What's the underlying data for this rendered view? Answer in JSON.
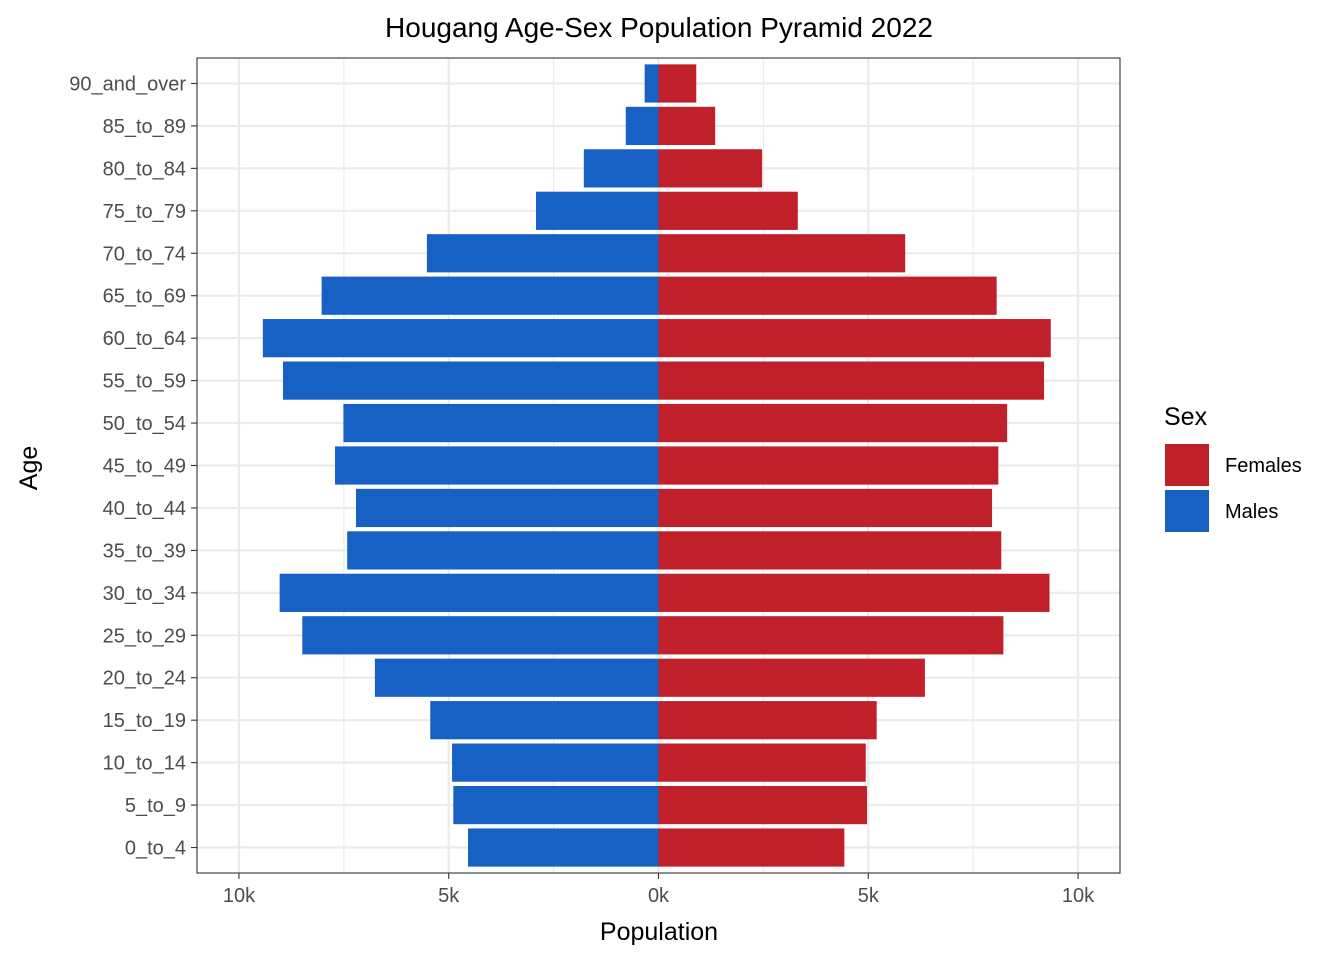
{
  "chart_data": {
    "type": "bar",
    "orientation": "horizontal",
    "title": "Hougang Age-Sex Population Pyramid 2022",
    "xlabel": "Population",
    "ylabel": "Age",
    "xlim": [
      -10000,
      10000
    ],
    "x_ticks": [
      -10000,
      -5000,
      0,
      5000,
      10000
    ],
    "x_tick_labels": [
      "10k",
      "5k",
      "0k",
      "5k",
      "10k"
    ],
    "grid": true,
    "legend": {
      "title": "Sex",
      "position": "right"
    },
    "categories": [
      "0_to_4",
      "5_to_9",
      "10_to_14",
      "15_to_19",
      "20_to_24",
      "25_to_29",
      "30_to_34",
      "35_to_39",
      "40_to_44",
      "45_to_49",
      "50_to_54",
      "55_to_59",
      "60_to_64",
      "65_to_69",
      "70_to_74",
      "75_to_79",
      "80_to_84",
      "85_to_89",
      "90_and_over"
    ],
    "series": [
      {
        "name": "Females",
        "color": "#C0202A",
        "values": [
          4430,
          4970,
          4940,
          5200,
          6350,
          8220,
          9320,
          8170,
          7950,
          8100,
          8310,
          9190,
          9350,
          8060,
          5880,
          3320,
          2470,
          1350,
          900
        ]
      },
      {
        "name": "Males",
        "color": "#1760C4",
        "values": [
          -4540,
          -4890,
          -4920,
          -5440,
          -6760,
          -8490,
          -9030,
          -7420,
          -7210,
          -7710,
          -7510,
          -8950,
          -9430,
          -8030,
          -5520,
          -2920,
          -1780,
          -780,
          -330
        ]
      }
    ]
  }
}
